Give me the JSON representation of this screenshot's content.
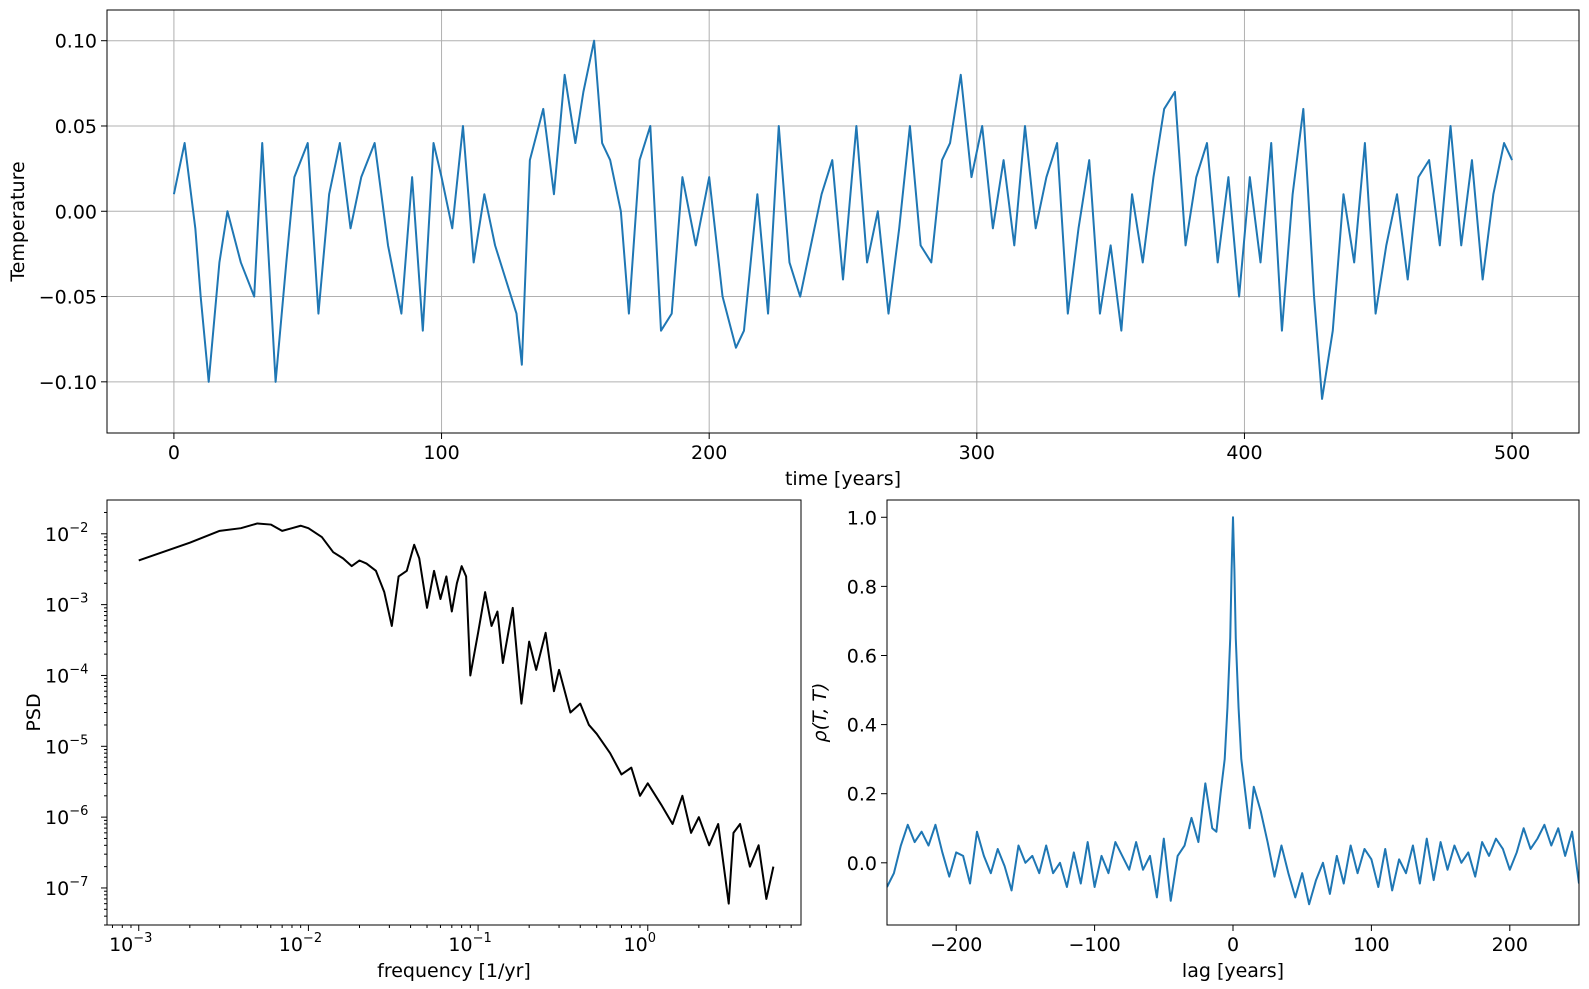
{
  "chart_data": [
    {
      "type": "line",
      "xlabel": "time [years]",
      "ylabel": "Temperature",
      "xlim": [
        -25,
        525
      ],
      "ylim": [
        -0.13,
        0.118
      ],
      "xticks": [
        0,
        100,
        200,
        300,
        400,
        500
      ],
      "yticks": [
        -0.1,
        -0.05,
        0.0,
        0.05,
        0.1
      ],
      "ytick_labels": [
        "−0.10",
        "−0.05",
        "0.00",
        "0.05",
        "0.10"
      ],
      "xtick_labels": [
        "0",
        "100",
        "200",
        "300",
        "400",
        "500"
      ],
      "grid": true,
      "color": "#1f77b4",
      "series": [
        {
          "x": [
            0,
            4,
            8,
            10,
            13,
            17,
            20,
            25,
            30,
            33,
            38,
            42,
            45,
            50,
            54,
            58,
            62,
            66,
            70,
            75,
            80,
            85,
            89,
            93,
            97,
            100,
            104,
            108,
            112,
            116,
            120,
            124,
            128,
            130,
            133,
            138,
            142,
            146,
            150,
            153,
            157,
            160,
            163,
            167,
            170,
            174,
            178,
            182,
            186,
            190,
            195,
            200,
            205,
            210,
            213,
            218,
            222,
            226,
            230,
            234,
            238,
            242,
            246,
            250,
            255,
            259,
            263,
            267,
            271,
            275,
            279,
            283,
            287,
            290,
            294,
            298,
            302,
            306,
            310,
            314,
            318,
            322,
            326,
            330,
            334,
            338,
            342,
            346,
            350,
            354,
            358,
            362,
            366,
            370,
            374,
            378,
            382,
            386,
            390,
            394,
            398,
            402,
            406,
            410,
            414,
            418,
            422,
            426,
            429,
            433,
            437,
            441,
            445,
            449,
            453,
            457,
            461,
            465,
            469,
            473,
            477,
            481,
            485,
            489,
            493,
            497,
            500
          ],
          "y": [
            0.01,
            0.04,
            -0.01,
            -0.05,
            -0.1,
            -0.03,
            0.0,
            -0.03,
            -0.05,
            0.04,
            -0.1,
            -0.03,
            0.02,
            0.04,
            -0.06,
            0.01,
            0.04,
            -0.01,
            0.02,
            0.04,
            -0.02,
            -0.06,
            0.02,
            -0.07,
            0.04,
            0.02,
            -0.01,
            0.05,
            -0.03,
            0.01,
            -0.02,
            -0.04,
            -0.06,
            -0.09,
            0.03,
            0.06,
            0.01,
            0.08,
            0.04,
            0.07,
            0.1,
            0.04,
            0.03,
            0.0,
            -0.06,
            0.03,
            0.05,
            -0.07,
            -0.06,
            0.02,
            -0.02,
            0.02,
            -0.05,
            -0.08,
            -0.07,
            0.01,
            -0.06,
            0.05,
            -0.03,
            -0.05,
            -0.02,
            0.01,
            0.03,
            -0.04,
            0.05,
            -0.03,
            0.0,
            -0.06,
            -0.01,
            0.05,
            -0.02,
            -0.03,
            0.03,
            0.04,
            0.08,
            0.02,
            0.05,
            -0.01,
            0.03,
            -0.02,
            0.05,
            -0.01,
            0.02,
            0.04,
            -0.06,
            -0.01,
            0.03,
            -0.06,
            -0.02,
            -0.07,
            0.01,
            -0.03,
            0.02,
            0.06,
            0.07,
            -0.02,
            0.02,
            0.04,
            -0.03,
            0.02,
            -0.05,
            0.02,
            -0.03,
            0.04,
            -0.07,
            0.01,
            0.06,
            -0.05,
            -0.11,
            -0.07,
            0.01,
            -0.03,
            0.04,
            -0.06,
            -0.02,
            0.01,
            -0.04,
            0.02,
            0.03,
            -0.02,
            0.05,
            -0.02,
            0.03,
            -0.04,
            0.01,
            0.04,
            0.03
          ]
        }
      ]
    },
    {
      "type": "line",
      "xlabel": "frequency [1/yr]",
      "ylabel": "PSD",
      "xscale": "log",
      "yscale": "log",
      "xlim": [
        0.00065,
        8
      ],
      "ylim": [
        3e-08,
        0.03
      ],
      "xticks": [
        0.001,
        0.01,
        0.1,
        1
      ],
      "xtick_labels": [
        "10",
        "10",
        "10",
        "10"
      ],
      "xtick_exponents": [
        "−3",
        "−2",
        "−1",
        "0"
      ],
      "yticks": [
        1e-07,
        1e-06,
        1e-05,
        0.0001,
        0.001,
        0.01
      ],
      "ytick_labels": [
        "10",
        "10",
        "10",
        "10",
        "10",
        "10"
      ],
      "ytick_exponents": [
        "−7",
        "−6",
        "−5",
        "−4",
        "−3",
        "−2"
      ],
      "grid": false,
      "color": "#000000",
      "series": [
        {
          "x": [
            0.001,
            0.002,
            0.003,
            0.004,
            0.005,
            0.006,
            0.007,
            0.008,
            0.009,
            0.01,
            0.012,
            0.014,
            0.016,
            0.018,
            0.02,
            0.022,
            0.025,
            0.028,
            0.031,
            0.034,
            0.038,
            0.042,
            0.045,
            0.05,
            0.055,
            0.06,
            0.065,
            0.07,
            0.075,
            0.08,
            0.085,
            0.09,
            0.1,
            0.11,
            0.12,
            0.13,
            0.14,
            0.16,
            0.18,
            0.2,
            0.22,
            0.25,
            0.28,
            0.3,
            0.35,
            0.4,
            0.45,
            0.5,
            0.6,
            0.7,
            0.8,
            0.9,
            1.0,
            1.2,
            1.4,
            1.6,
            1.8,
            2.0,
            2.3,
            2.6,
            3.0,
            3.2,
            3.5,
            4.0,
            4.5,
            5.0,
            5.5
          ],
          "y": [
            0.0042,
            0.0075,
            0.011,
            0.012,
            0.014,
            0.0135,
            0.011,
            0.012,
            0.013,
            0.012,
            0.009,
            0.0055,
            0.0045,
            0.0035,
            0.0042,
            0.0038,
            0.003,
            0.0015,
            0.0005,
            0.0025,
            0.003,
            0.007,
            0.0045,
            0.0009,
            0.003,
            0.0012,
            0.0025,
            0.0008,
            0.002,
            0.0035,
            0.0025,
            0.0001,
            0.0004,
            0.0015,
            0.0005,
            0.0008,
            0.00015,
            0.0009,
            4e-05,
            0.0003,
            0.00012,
            0.0004,
            6e-05,
            0.00012,
            3e-05,
            4e-05,
            2e-05,
            1.5e-05,
            8e-06,
            4e-06,
            5e-06,
            2e-06,
            3e-06,
            1.5e-06,
            8e-07,
            2e-06,
            6e-07,
            1e-06,
            4e-07,
            8e-07,
            6e-08,
            6e-07,
            8e-07,
            2e-07,
            4e-07,
            7e-08,
            2e-07
          ]
        }
      ]
    },
    {
      "type": "line",
      "xlabel": "lag [years]",
      "ylabel": "ρ(T, T)",
      "xlim": [
        -250,
        250
      ],
      "ylim": [
        -0.18,
        1.05
      ],
      "xticks": [
        -200,
        -100,
        0,
        100,
        200
      ],
      "xtick_labels": [
        "−200",
        "−100",
        "0",
        "100",
        "200"
      ],
      "yticks": [
        0.0,
        0.2,
        0.4,
        0.6,
        0.8,
        1.0
      ],
      "ytick_labels": [
        "0.0",
        "0.2",
        "0.4",
        "0.6",
        "0.8",
        "1.0"
      ],
      "grid": false,
      "color": "#1f77b4",
      "series": [
        {
          "x": [
            -250,
            -245,
            -240,
            -235,
            -230,
            -225,
            -220,
            -215,
            -210,
            -205,
            -200,
            -195,
            -190,
            -185,
            -180,
            -175,
            -170,
            -165,
            -160,
            -155,
            -150,
            -145,
            -140,
            -135,
            -130,
            -125,
            -120,
            -115,
            -110,
            -105,
            -100,
            -95,
            -90,
            -85,
            -80,
            -75,
            -70,
            -65,
            -60,
            -55,
            -50,
            -45,
            -40,
            -35,
            -30,
            -25,
            -20,
            -15,
            -12,
            -9,
            -6,
            -4,
            -2,
            -1,
            0,
            1,
            2,
            4,
            6,
            9,
            12,
            15,
            20,
            25,
            30,
            35,
            40,
            45,
            50,
            55,
            60,
            65,
            70,
            75,
            80,
            85,
            90,
            95,
            100,
            105,
            110,
            115,
            120,
            125,
            130,
            135,
            140,
            145,
            150,
            155,
            160,
            165,
            170,
            175,
            180,
            185,
            190,
            195,
            200,
            205,
            210,
            215,
            220,
            225,
            230,
            235,
            240,
            245,
            250
          ],
          "y": [
            -0.07,
            -0.03,
            0.05,
            0.11,
            0.06,
            0.09,
            0.05,
            0.11,
            0.03,
            -0.04,
            0.03,
            0.02,
            -0.06,
            0.09,
            0.02,
            -0.03,
            0.04,
            -0.01,
            -0.08,
            0.05,
            0.0,
            0.02,
            -0.03,
            0.05,
            -0.03,
            0.0,
            -0.07,
            0.03,
            -0.06,
            0.06,
            -0.07,
            0.02,
            -0.03,
            0.06,
            0.02,
            -0.02,
            0.06,
            -0.02,
            0.02,
            -0.1,
            0.07,
            -0.11,
            0.02,
            0.05,
            0.13,
            0.06,
            0.23,
            0.1,
            0.09,
            0.2,
            0.3,
            0.45,
            0.65,
            0.85,
            1.0,
            0.85,
            0.65,
            0.45,
            0.3,
            0.2,
            0.1,
            0.22,
            0.15,
            0.06,
            -0.04,
            0.05,
            -0.03,
            -0.1,
            -0.03,
            -0.12,
            -0.05,
            0.0,
            -0.09,
            0.02,
            -0.06,
            0.05,
            -0.03,
            0.04,
            0.01,
            -0.07,
            0.04,
            -0.08,
            0.01,
            -0.03,
            0.05,
            -0.06,
            0.07,
            -0.05,
            0.06,
            -0.02,
            0.05,
            0.0,
            0.03,
            -0.04,
            0.06,
            0.02,
            0.07,
            0.04,
            -0.02,
            0.03,
            0.1,
            0.04,
            0.07,
            0.11,
            0.05,
            0.1,
            0.02,
            0.09,
            -0.06
          ]
        }
      ]
    }
  ]
}
